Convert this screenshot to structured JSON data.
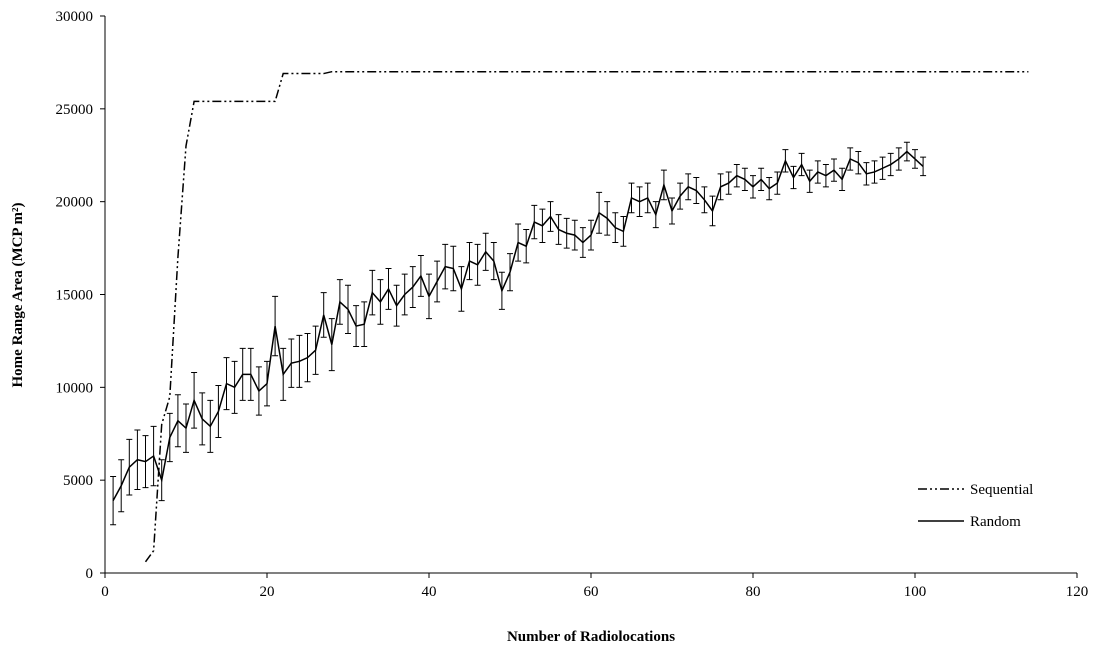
{
  "chart_data": {
    "type": "line",
    "x_label": "Number of Radiolocations",
    "y_label": "Home Range Area (MCP m²)",
    "xlim": [
      0,
      120
    ],
    "xticks": [
      0,
      20,
      40,
      60,
      80,
      100,
      120
    ],
    "ylim": [
      0,
      30000
    ],
    "yticks": [
      0,
      5000,
      10000,
      15000,
      20000,
      25000,
      30000
    ],
    "grid": false,
    "legend": "lower right",
    "series": [
      {
        "name": "Sequential",
        "color": "#000000",
        "dash": "dash-dot-dot",
        "x": [
          5,
          6,
          7,
          8,
          9,
          10,
          11,
          21,
          22,
          27,
          28,
          114
        ],
        "values": [
          600,
          1200,
          8000,
          9500,
          17000,
          23000,
          25400,
          25400,
          26900,
          26900,
          27000,
          27000
        ]
      },
      {
        "name": "Random",
        "color": "#000000",
        "dash": "solid",
        "x": [
          1,
          2,
          3,
          4,
          5,
          6,
          7,
          8,
          9,
          10,
          11,
          12,
          13,
          14,
          15,
          16,
          17,
          18,
          19,
          20,
          21,
          22,
          23,
          24,
          25,
          26,
          27,
          28,
          29,
          30,
          31,
          32,
          33,
          34,
          35,
          36,
          37,
          38,
          39,
          40,
          41,
          42,
          43,
          44,
          45,
          46,
          47,
          48,
          49,
          50,
          51,
          52,
          53,
          54,
          55,
          56,
          57,
          58,
          59,
          60,
          61,
          62,
          63,
          64,
          65,
          66,
          67,
          68,
          69,
          70,
          71,
          72,
          73,
          74,
          75,
          76,
          77,
          78,
          79,
          80,
          81,
          82,
          83,
          84,
          85,
          86,
          87,
          88,
          89,
          90,
          91,
          92,
          93,
          94,
          95,
          96,
          97,
          98,
          99,
          100,
          101
        ],
        "values": [
          3900,
          4700,
          5700,
          6100,
          6000,
          6300,
          5000,
          7300,
          8200,
          7800,
          9300,
          8300,
          7900,
          8700,
          10200,
          10000,
          10700,
          10700,
          9800,
          10200,
          13300,
          10700,
          11300,
          11400,
          11600,
          12000,
          13900,
          12300,
          14600,
          14200,
          13300,
          13400,
          15100,
          14600,
          15300,
          14400,
          15000,
          15400,
          16000,
          14900,
          15700,
          16500,
          16400,
          15300,
          16800,
          16600,
          17300,
          16800,
          15200,
          16200,
          17800,
          17600,
          18900,
          18700,
          19200,
          18500,
          18300,
          18200,
          17800,
          18200,
          19400,
          19100,
          18600,
          18400,
          20200,
          20000,
          20200,
          19300,
          20900,
          19500,
          20300,
          20800,
          20600,
          20100,
          19500,
          20800,
          21000,
          21400,
          21200,
          20800,
          21200,
          20700,
          21000,
          22200,
          21300,
          22000,
          21100,
          21600,
          21400,
          21700,
          21200,
          22300,
          22100,
          21500,
          21600,
          21800,
          22000,
          22300,
          22700,
          22300,
          21900
        ],
        "errors": [
          1300,
          1400,
          1500,
          1600,
          1400,
          1600,
          1100,
          1300,
          1400,
          1300,
          1500,
          1400,
          1400,
          1400,
          1400,
          1400,
          1400,
          1400,
          1300,
          1200,
          1600,
          1400,
          1300,
          1400,
          1300,
          1300,
          1200,
          1400,
          1200,
          1300,
          1100,
          1200,
          1200,
          1200,
          1100,
          1100,
          1100,
          1100,
          1100,
          1200,
          1100,
          1200,
          1200,
          1200,
          1000,
          1100,
          1000,
          1000,
          1000,
          1000,
          1000,
          900,
          900,
          900,
          800,
          800,
          800,
          800,
          800,
          800,
          1100,
          900,
          800,
          800,
          800,
          800,
          800,
          700,
          800,
          700,
          700,
          700,
          700,
          700,
          800,
          700,
          600,
          600,
          600,
          600,
          600,
          600,
          600,
          600,
          600,
          600,
          600,
          600,
          600,
          600,
          600,
          600,
          600,
          600,
          600,
          600,
          600,
          600,
          500,
          500,
          500
        ]
      }
    ]
  }
}
